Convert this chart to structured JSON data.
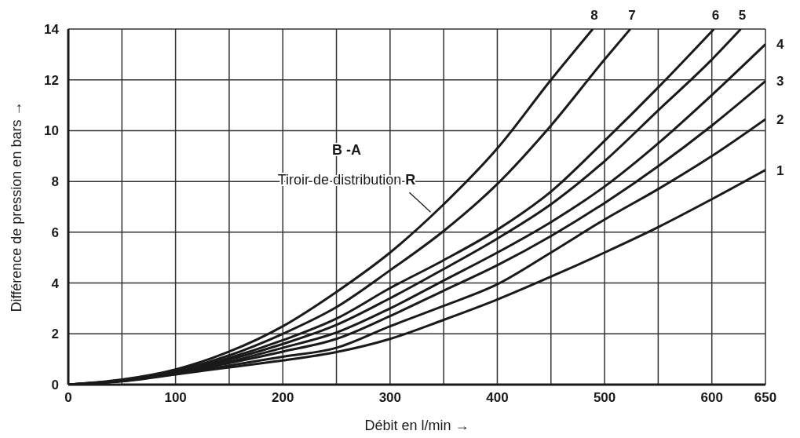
{
  "chart_data": {
    "type": "line",
    "xlabel": "Débit en l/min →",
    "ylabel": "Différence de pression en bars →",
    "xlim": [
      0,
      650
    ],
    "ylim": [
      0,
      14
    ],
    "xticks": [
      0,
      {
        "value": 50,
        "label": null
      },
      100,
      {
        "value": 150,
        "label": null
      },
      200,
      {
        "value": 250,
        "label": null
      },
      300,
      {
        "value": 350,
        "label": null
      },
      400,
      {
        "value": 450,
        "label": null
      },
      500,
      {
        "value": 550,
        "label": null
      },
      600,
      650
    ],
    "yticks": [
      0,
      2,
      4,
      6,
      8,
      10,
      12,
      14
    ],
    "grid": true,
    "annotations": [
      "B -A",
      {
        "text": "Tiroir de distribution R",
        "x": 340,
        "y": 6.7
      }
    ],
    "series": [
      {
        "name": "1",
        "color": "#1a1a1a",
        "x": [
          0,
          50,
          100,
          150,
          200,
          250,
          300,
          350,
          400,
          450,
          500,
          550,
          600,
          650
        ],
        "values": [
          0,
          0.13,
          0.4,
          0.68,
          0.95,
          1.28,
          1.8,
          2.55,
          3.35,
          4.25,
          5.2,
          6.2,
          7.3,
          8.45
        ]
      },
      {
        "name": "2",
        "color": "#1a1a1a",
        "x": [
          0,
          50,
          100,
          150,
          200,
          250,
          300,
          350,
          400,
          450,
          500,
          550,
          600,
          650
        ],
        "values": [
          0,
          0.14,
          0.42,
          0.75,
          1.1,
          1.45,
          2.3,
          3.1,
          3.95,
          5.2,
          6.5,
          7.7,
          9.0,
          10.45
        ]
      },
      {
        "name": "3",
        "color": "#1a1a1a",
        "x": [
          0,
          50,
          100,
          150,
          200,
          250,
          300,
          350,
          400,
          450,
          500,
          550,
          600,
          650
        ],
        "values": [
          0,
          0.15,
          0.44,
          0.85,
          1.3,
          1.8,
          2.7,
          3.7,
          4.7,
          5.85,
          7.15,
          8.6,
          10.2,
          11.95
        ]
      },
      {
        "name": "4",
        "color": "#1a1a1a",
        "x": [
          0,
          50,
          100,
          150,
          200,
          250,
          300,
          350,
          400,
          450,
          500,
          550,
          600,
          650
        ],
        "values": [
          0,
          0.15,
          0.46,
          0.9,
          1.45,
          2.05,
          3.0,
          4.1,
          5.2,
          6.4,
          7.8,
          9.5,
          11.4,
          13.4
        ]
      },
      {
        "name": "5",
        "color": "#1a1a1a",
        "x": [
          0,
          50,
          100,
          150,
          200,
          250,
          300,
          350,
          400,
          450,
          500,
          550,
          600,
          627
        ],
        "values": [
          0,
          0.16,
          0.48,
          0.98,
          1.6,
          2.35,
          3.4,
          4.55,
          5.75,
          7.1,
          8.8,
          10.8,
          12.8,
          14
        ]
      },
      {
        "name": "6",
        "color": "#1a1a1a",
        "x": [
          0,
          50,
          100,
          150,
          200,
          250,
          300,
          350,
          400,
          450,
          500,
          550,
          602
        ],
        "values": [
          0,
          0.17,
          0.5,
          1.05,
          1.75,
          2.6,
          3.8,
          4.9,
          6.1,
          7.6,
          9.6,
          11.7,
          14
        ]
      },
      {
        "name": "7",
        "color": "#1a1a1a",
        "x": [
          0,
          50,
          100,
          150,
          200,
          250,
          300,
          350,
          400,
          450,
          500,
          524
        ],
        "values": [
          0,
          0.18,
          0.55,
          1.15,
          2.0,
          3.05,
          4.5,
          6.05,
          7.9,
          10.2,
          12.8,
          14
        ]
      },
      {
        "name": "8",
        "color": "#1a1a1a",
        "x": [
          0,
          50,
          100,
          150,
          200,
          250,
          300,
          350,
          400,
          450,
          489
        ],
        "values": [
          0,
          0.2,
          0.6,
          1.3,
          2.3,
          3.65,
          5.2,
          7.1,
          9.3,
          12.0,
          14
        ]
      }
    ]
  }
}
